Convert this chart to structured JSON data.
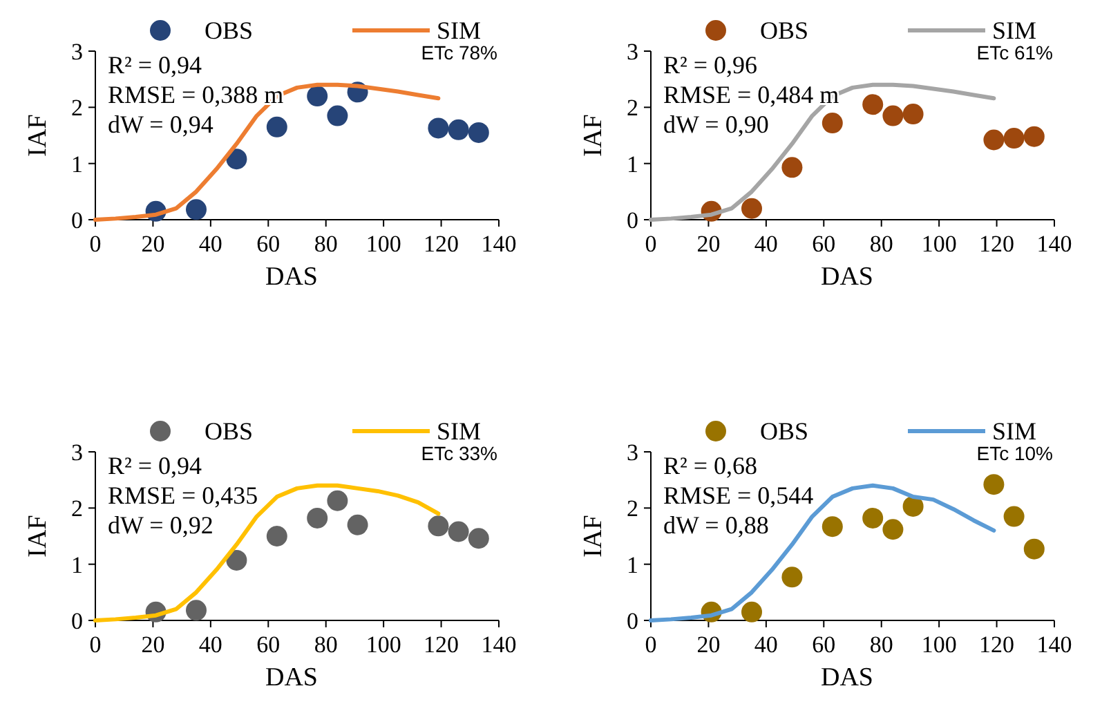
{
  "chart_data": [
    {
      "type": "scatter",
      "xlabel": "DAS",
      "ylabel": "IAF",
      "xlim": [
        0,
        140
      ],
      "xticks": [
        0,
        20,
        40,
        60,
        80,
        100,
        120,
        140
      ],
      "ylim": [
        0,
        3
      ],
      "yticks": [
        0,
        1,
        2,
        3
      ],
      "grid": false,
      "legend": "top",
      "annotations": [
        "R² = 0,94",
        "RMSE = 0,388 m",
        "dW = 0,94",
        "ETc 78%"
      ],
      "series": [
        {
          "name": "OBS",
          "marker": "circle",
          "color": "#264478",
          "x": [
            21,
            35,
            49,
            63,
            77,
            84,
            91,
            119,
            126,
            133
          ],
          "values": [
            0.15,
            0.18,
            1.08,
            1.65,
            2.2,
            1.85,
            2.27,
            1.63,
            1.6,
            1.55
          ]
        },
        {
          "name": "SIM",
          "type": "line",
          "marker": "none",
          "color": "#ed7d31",
          "x": [
            0,
            7,
            14,
            21,
            28,
            35,
            42,
            49,
            56,
            63,
            70,
            77,
            84,
            91,
            98,
            105,
            112,
            119
          ],
          "values": [
            0,
            0.02,
            0.05,
            0.09,
            0.2,
            0.5,
            0.9,
            1.35,
            1.85,
            2.2,
            2.35,
            2.4,
            2.4,
            2.38,
            2.33,
            2.28,
            2.22,
            2.16
          ]
        }
      ]
    },
    {
      "type": "scatter",
      "xlabel": "DAS",
      "ylabel": "IAF",
      "xlim": [
        0,
        140
      ],
      "xticks": [
        0,
        20,
        40,
        60,
        80,
        100,
        120,
        140
      ],
      "ylim": [
        0,
        3
      ],
      "yticks": [
        0,
        1,
        2,
        3
      ],
      "grid": false,
      "legend": "top",
      "annotations": [
        "R² = 0,96",
        "RMSE = 0,484 m",
        "dW = 0,90",
        "ETc 61%"
      ],
      "series": [
        {
          "name": "OBS",
          "marker": "circle",
          "color": "#9e480e",
          "x": [
            21,
            35,
            49,
            63,
            77,
            84,
            91,
            119,
            126,
            133
          ],
          "values": [
            0.15,
            0.2,
            0.93,
            1.72,
            2.05,
            1.85,
            1.88,
            1.42,
            1.45,
            1.48
          ]
        },
        {
          "name": "SIM",
          "type": "line",
          "marker": "none",
          "color": "#a5a5a5",
          "x": [
            0,
            7,
            14,
            21,
            28,
            35,
            42,
            49,
            56,
            63,
            70,
            77,
            84,
            91,
            98,
            105,
            112,
            119
          ],
          "values": [
            0,
            0.02,
            0.05,
            0.09,
            0.2,
            0.5,
            0.9,
            1.35,
            1.85,
            2.2,
            2.35,
            2.4,
            2.4,
            2.38,
            2.33,
            2.28,
            2.22,
            2.16
          ]
        }
      ]
    },
    {
      "type": "scatter",
      "xlabel": "DAS",
      "ylabel": "IAF",
      "xlim": [
        0,
        140
      ],
      "xticks": [
        0,
        20,
        40,
        60,
        80,
        100,
        120,
        140
      ],
      "ylim": [
        0,
        3
      ],
      "yticks": [
        0,
        1,
        2,
        3
      ],
      "grid": false,
      "legend": "top",
      "annotations": [
        "R² = 0,94",
        "RMSE = 0,435",
        "dW = 0,92",
        "ETc 33%"
      ],
      "series": [
        {
          "name": "OBS",
          "marker": "circle",
          "color": "#636363",
          "x": [
            21,
            35,
            49,
            63,
            77,
            84,
            91,
            119,
            126,
            133
          ],
          "values": [
            0.15,
            0.18,
            1.07,
            1.5,
            1.82,
            2.13,
            1.7,
            1.68,
            1.58,
            1.46
          ]
        },
        {
          "name": "SIM",
          "type": "line",
          "marker": "none",
          "color": "#ffc000",
          "x": [
            0,
            7,
            14,
            21,
            28,
            35,
            42,
            49,
            56,
            63,
            70,
            77,
            84,
            91,
            98,
            105,
            112,
            119
          ],
          "values": [
            0,
            0.02,
            0.05,
            0.09,
            0.2,
            0.5,
            0.9,
            1.35,
            1.85,
            2.2,
            2.35,
            2.4,
            2.4,
            2.35,
            2.3,
            2.22,
            2.1,
            1.9
          ]
        }
      ]
    },
    {
      "type": "scatter",
      "xlabel": "DAS",
      "ylabel": "IAF",
      "xlim": [
        0,
        140
      ],
      "xticks": [
        0,
        20,
        40,
        60,
        80,
        100,
        120,
        140
      ],
      "ylim": [
        0,
        3
      ],
      "yticks": [
        0,
        1,
        2,
        3
      ],
      "grid": false,
      "legend": "top",
      "annotations": [
        "R² = 0,68",
        "RMSE = 0,544",
        "dW = 0,88",
        "ETc 10%"
      ],
      "series": [
        {
          "name": "OBS",
          "marker": "circle",
          "color": "#997300",
          "x": [
            21,
            35,
            49,
            63,
            77,
            84,
            91,
            119,
            126,
            133
          ],
          "values": [
            0.15,
            0.15,
            0.77,
            1.67,
            1.82,
            1.62,
            2.03,
            2.42,
            1.85,
            1.27
          ]
        },
        {
          "name": "SIM",
          "type": "line",
          "marker": "none",
          "color": "#5b9bd5",
          "x": [
            0,
            7,
            14,
            21,
            28,
            35,
            42,
            49,
            56,
            63,
            70,
            77,
            84,
            91,
            98,
            105,
            112,
            119
          ],
          "values": [
            0,
            0.02,
            0.05,
            0.09,
            0.2,
            0.5,
            0.9,
            1.35,
            1.85,
            2.2,
            2.35,
            2.4,
            2.35,
            2.2,
            2.15,
            1.98,
            1.78,
            1.6
          ]
        }
      ]
    }
  ]
}
